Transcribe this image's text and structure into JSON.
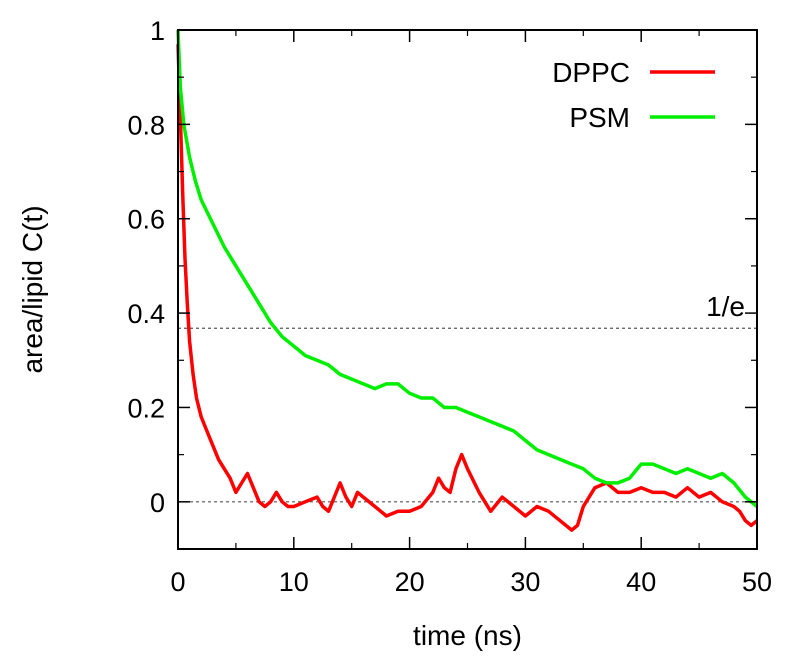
{
  "chart_data": {
    "type": "line",
    "xlabel": "time (ns)",
    "ylabel": "area/lipid C(t)",
    "xlim": [
      0,
      50
    ],
    "ylim": [
      -0.1,
      1
    ],
    "x_ticks": [
      0,
      10,
      20,
      30,
      40,
      50
    ],
    "x_tick_labels": [
      "0",
      "10",
      "20",
      "30",
      "40",
      "50"
    ],
    "y_ticks": [
      0,
      0.2,
      0.4,
      0.6,
      0.8,
      1
    ],
    "y_tick_labels": [
      "0",
      "0.2",
      "0.4",
      "0.6",
      "0.8",
      "1"
    ],
    "grid": false,
    "legend_position": "top-right",
    "reference_lines": [
      {
        "y": 0.3679,
        "label": "1/e",
        "style": "dotted",
        "color": "#555555"
      },
      {
        "y": 0,
        "label": "",
        "style": "dotted",
        "color": "#555555"
      }
    ],
    "series": [
      {
        "name": "DPPC",
        "color": "#ff0000",
        "x": [
          0,
          0.2,
          0.4,
          0.6,
          0.8,
          1.0,
          1.3,
          1.6,
          2.0,
          2.5,
          3.0,
          3.5,
          4.0,
          4.5,
          5.0,
          5.5,
          6.0,
          6.5,
          7.0,
          7.5,
          8.0,
          8.5,
          9.0,
          9.5,
          10,
          11,
          12,
          12.5,
          13,
          13.5,
          14,
          14.5,
          15,
          15.5,
          16,
          17,
          18,
          19,
          20,
          21,
          22,
          22.5,
          23,
          23.5,
          24,
          24.5,
          25,
          26,
          27,
          28,
          29,
          30,
          31,
          32,
          33,
          33.5,
          34,
          34.5,
          35,
          36,
          37,
          38,
          39,
          40,
          41,
          42,
          43,
          44,
          45,
          46,
          47,
          48,
          48.5,
          49,
          49.5,
          50
        ],
        "y": [
          0.97,
          0.82,
          0.66,
          0.52,
          0.42,
          0.34,
          0.27,
          0.22,
          0.18,
          0.15,
          0.12,
          0.09,
          0.07,
          0.05,
          0.02,
          0.04,
          0.06,
          0.03,
          0.0,
          -0.01,
          0.0,
          0.02,
          0.0,
          -0.01,
          -0.01,
          0.0,
          0.01,
          -0.01,
          -0.02,
          0.01,
          0.04,
          0.01,
          -0.01,
          0.02,
          0.01,
          -0.01,
          -0.03,
          -0.02,
          -0.02,
          -0.01,
          0.02,
          0.05,
          0.03,
          0.02,
          0.07,
          0.1,
          0.07,
          0.02,
          -0.02,
          0.01,
          -0.01,
          -0.03,
          -0.01,
          -0.02,
          -0.04,
          -0.05,
          -0.06,
          -0.05,
          -0.01,
          0.03,
          0.04,
          0.02,
          0.02,
          0.03,
          0.02,
          0.02,
          0.01,
          0.03,
          0.01,
          0.02,
          0.0,
          -0.01,
          -0.02,
          -0.04,
          -0.05,
          -0.04
        ]
      },
      {
        "name": "PSM",
        "color": "#00ee00",
        "x": [
          0,
          0.2,
          0.5,
          1,
          1.5,
          2,
          3,
          4,
          5,
          6,
          7,
          8,
          9,
          10,
          11,
          12,
          13,
          14,
          15,
          16,
          17,
          18,
          19,
          20,
          21,
          22,
          23,
          24,
          25,
          26,
          27,
          28,
          29,
          30,
          31,
          32,
          33,
          34,
          35,
          36,
          37,
          38,
          39,
          40,
          41,
          42,
          43,
          44,
          45,
          46,
          47,
          48,
          49,
          50
        ],
        "y": [
          1.0,
          0.88,
          0.8,
          0.73,
          0.68,
          0.64,
          0.59,
          0.54,
          0.5,
          0.46,
          0.42,
          0.38,
          0.35,
          0.33,
          0.31,
          0.3,
          0.29,
          0.27,
          0.26,
          0.25,
          0.24,
          0.25,
          0.25,
          0.23,
          0.22,
          0.22,
          0.2,
          0.2,
          0.19,
          0.18,
          0.17,
          0.16,
          0.15,
          0.13,
          0.11,
          0.1,
          0.09,
          0.08,
          0.07,
          0.05,
          0.04,
          0.04,
          0.05,
          0.08,
          0.08,
          0.07,
          0.06,
          0.07,
          0.06,
          0.05,
          0.06,
          0.04,
          0.01,
          -0.01
        ]
      }
    ]
  }
}
